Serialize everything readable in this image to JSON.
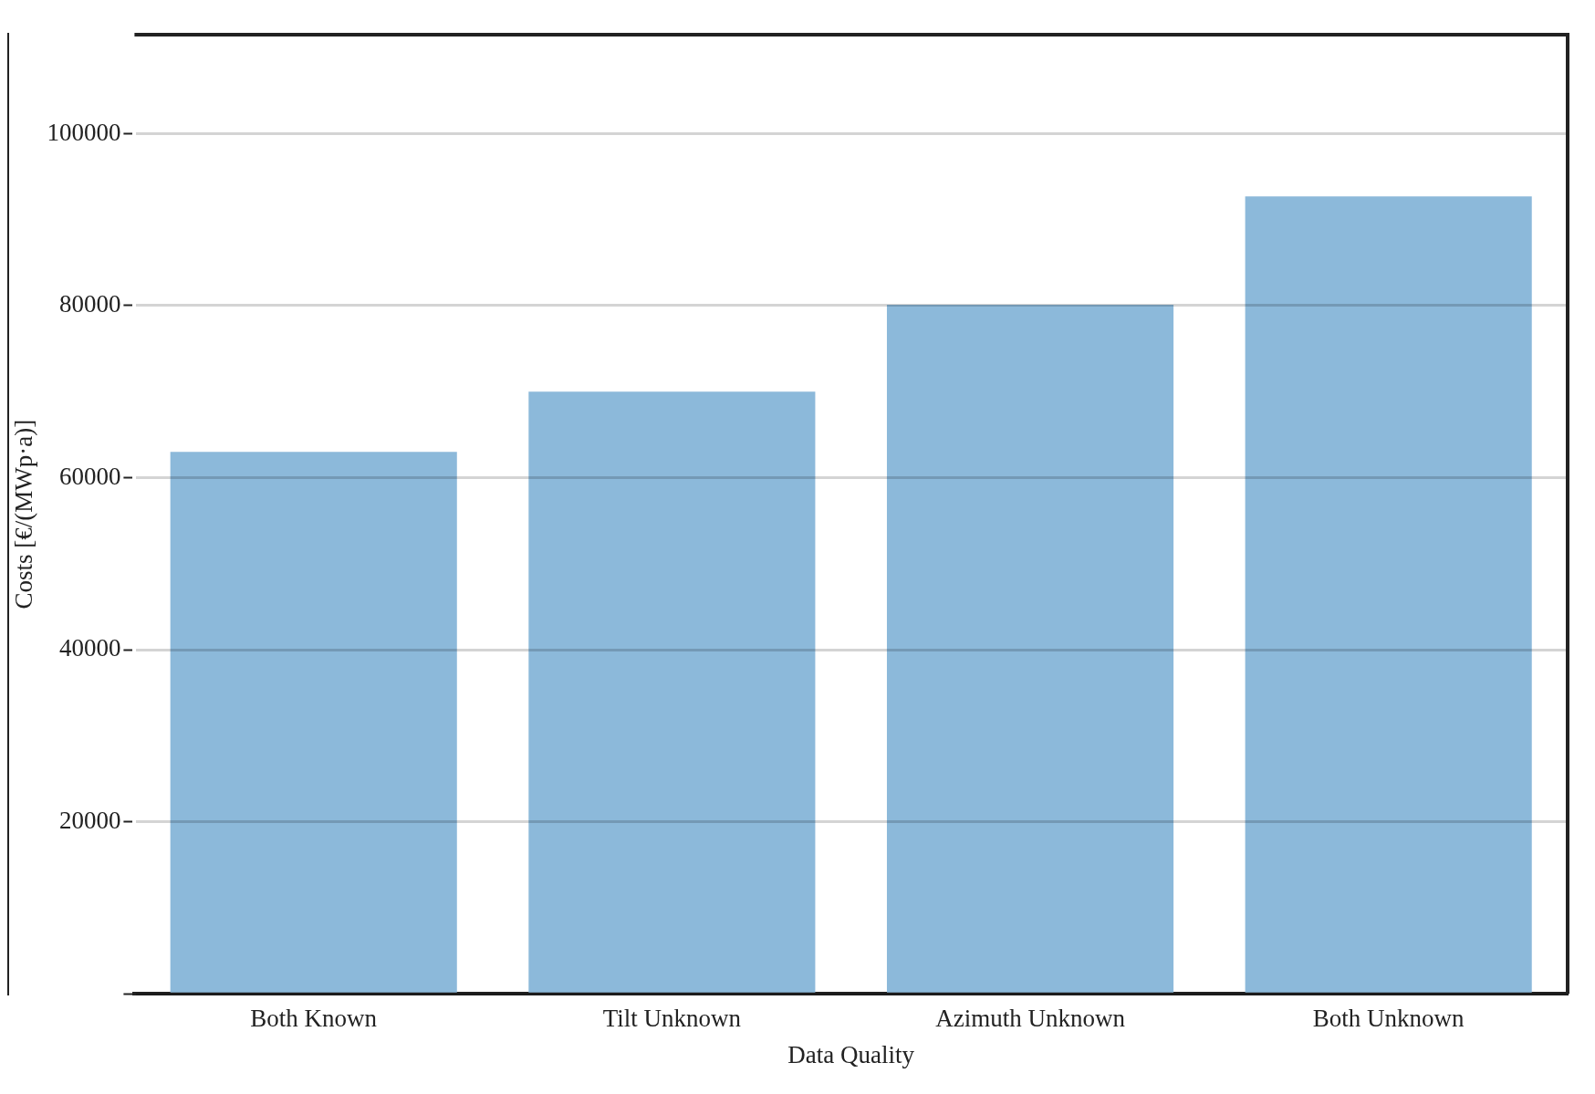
{
  "chart_data": {
    "type": "bar",
    "xlabel": "Data Quality",
    "ylabel": "Costs [€/(MWp·a)]",
    "categories": [
      "Both Known",
      "Tilt Unknown",
      "Azimuth Unknown",
      "Both Unknown"
    ],
    "values": [
      63000,
      70000,
      80100,
      92700
    ],
    "color": "#8cb9da",
    "ylim": [
      0,
      111500
    ],
    "yticks": [
      {
        "value": 0,
        "label": null
      },
      20000,
      40000,
      60000,
      80000,
      100000
    ],
    "grid": "y",
    "legend": false
  }
}
